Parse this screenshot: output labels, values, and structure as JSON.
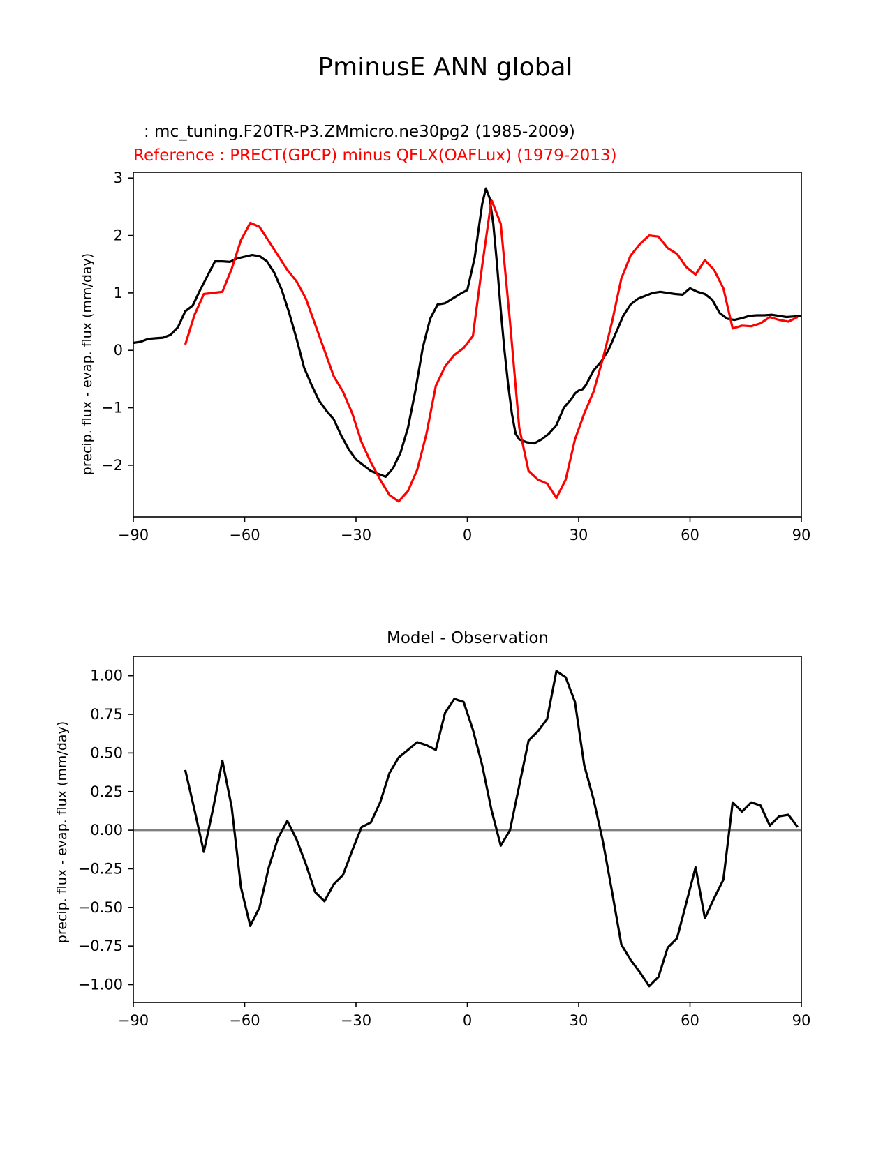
{
  "figure_title": "PminusE ANN global",
  "top": {
    "test_label": ": mc_tuning.F20TR-P3.ZMmicro.ne30pg2 (1985-2009)",
    "ref_label": "Reference : PRECT(GPCP) minus QFLX(OAFLux) (1979-2013)",
    "ylabel": "precip. flux - evap. flux (mm/day)"
  },
  "bottom": {
    "title": "Model - Observation",
    "ylabel": "precip. flux - evap. flux (mm/day)"
  },
  "colors": {
    "test": "#000000",
    "reference": "#ff0000",
    "zero_line": "#808080"
  },
  "chart_data": [
    {
      "type": "line",
      "title": "",
      "xlabel": "",
      "ylabel": "precip. flux - evap. flux (mm/day)",
      "xlim": [
        -90,
        90
      ],
      "ylim": [
        -2.9,
        3.1
      ],
      "xticks": [
        -90,
        -60,
        -30,
        0,
        30,
        60,
        90
      ],
      "xtick_labels": [
        "−90",
        "−60",
        "−30",
        "0",
        "30",
        "60",
        "90"
      ],
      "yticks": [
        -2,
        -1,
        0,
        1,
        2,
        3
      ],
      "ytick_labels": [
        "−2",
        "−1",
        "0",
        "1",
        "2",
        "3"
      ],
      "series": [
        {
          "name": "test",
          "color": "#000000",
          "x": [
            -90,
            -88,
            -86,
            -84,
            -82,
            -80,
            -78,
            -76,
            -74,
            -72,
            -70,
            -68,
            -66,
            -64,
            -62,
            -60,
            -58,
            -56,
            -54,
            -52,
            -50,
            -48,
            -46,
            -44,
            -42,
            -40,
            -38,
            -36,
            -34,
            -32,
            -30,
            -28,
            -26,
            -24,
            -22,
            -20,
            -18,
            -16,
            -14,
            -12,
            -10,
            -8,
            -6,
            -4,
            -2,
            0,
            2,
            3,
            4,
            5,
            6,
            7,
            8,
            9,
            10,
            11,
            12,
            13,
            14,
            16,
            18,
            20,
            22,
            24,
            26,
            28,
            29,
            30,
            31,
            32,
            34,
            36,
            38,
            40,
            42,
            44,
            46,
            48,
            50,
            52,
            54,
            56,
            58,
            60,
            62,
            64,
            66,
            68,
            70,
            72,
            74,
            76,
            78,
            80,
            82,
            84,
            86,
            88,
            90
          ],
          "values": [
            0.13,
            0.15,
            0.2,
            0.21,
            0.22,
            0.27,
            0.4,
            0.68,
            0.78,
            1.05,
            1.3,
            1.55,
            1.55,
            1.54,
            1.6,
            1.63,
            1.66,
            1.64,
            1.55,
            1.35,
            1.05,
            0.65,
            0.2,
            -0.3,
            -0.6,
            -0.87,
            -1.05,
            -1.2,
            -1.48,
            -1.72,
            -1.9,
            -2.0,
            -2.1,
            -2.15,
            -2.2,
            -2.05,
            -1.78,
            -1.35,
            -0.7,
            0.05,
            0.55,
            0.8,
            0.82,
            0.9,
            0.98,
            1.05,
            1.62,
            2.1,
            2.55,
            2.82,
            2.65,
            2.2,
            1.5,
            0.7,
            0.0,
            -0.6,
            -1.1,
            -1.45,
            -1.55,
            -1.6,
            -1.62,
            -1.55,
            -1.45,
            -1.3,
            -1.0,
            -0.85,
            -0.75,
            -0.7,
            -0.68,
            -0.6,
            -0.35,
            -0.2,
            0.0,
            0.3,
            0.6,
            0.8,
            0.9,
            0.95,
            1.0,
            1.02,
            1.0,
            0.98,
            0.97,
            1.08,
            1.02,
            0.98,
            0.88,
            0.65,
            0.55,
            0.53,
            0.56,
            0.6,
            0.61,
            0.61,
            0.62,
            0.6,
            0.58,
            0.59,
            0.6
          ]
        },
        {
          "name": "reference",
          "color": "#ff0000",
          "x": [
            -76,
            -73.5,
            -71,
            -68.5,
            -66,
            -63.5,
            -61,
            -58.5,
            -56,
            -53.5,
            -51,
            -48.5,
            -46,
            -43.5,
            -41,
            -38.5,
            -36,
            -33.5,
            -31,
            -28.5,
            -26,
            -23.5,
            -21,
            -18.5,
            -16,
            -13.5,
            -11,
            -8.5,
            -6,
            -3.5,
            -1,
            1.5,
            4,
            6.5,
            9,
            11.5,
            14,
            16.5,
            19,
            21.5,
            24,
            26.5,
            29,
            31.5,
            34,
            36.5,
            39,
            41.5,
            44,
            46.5,
            49,
            51.5,
            54,
            56.5,
            59,
            61.5,
            64,
            66.5,
            69,
            71.5,
            74,
            76.5,
            79,
            81.5,
            84,
            86.5,
            89
          ],
          "values": [
            0.1,
            0.62,
            0.98,
            1.0,
            1.02,
            1.42,
            1.92,
            2.22,
            2.15,
            1.9,
            1.65,
            1.4,
            1.2,
            0.9,
            0.45,
            0.0,
            -0.45,
            -0.72,
            -1.1,
            -1.6,
            -1.95,
            -2.25,
            -2.52,
            -2.63,
            -2.45,
            -2.08,
            -1.45,
            -0.62,
            -0.28,
            -0.08,
            0.04,
            0.25,
            1.48,
            2.62,
            2.2,
            0.5,
            -1.35,
            -2.1,
            -2.25,
            -2.32,
            -2.57,
            -2.25,
            -1.55,
            -1.1,
            -0.72,
            -0.15,
            0.5,
            1.25,
            1.65,
            1.85,
            2.0,
            1.98,
            1.78,
            1.68,
            1.45,
            1.32,
            1.57,
            1.4,
            1.08,
            0.38,
            0.43,
            0.42,
            0.47,
            0.58,
            0.53,
            0.5,
            0.58
          ]
        }
      ]
    },
    {
      "type": "line",
      "title": "Model - Observation",
      "xlabel": "",
      "ylabel": "precip. flux - evap. flux (mm/day)",
      "xlim": [
        -90,
        90
      ],
      "ylim": [
        -1.115,
        1.125
      ],
      "xticks": [
        -90,
        -60,
        -30,
        0,
        30,
        60,
        90
      ],
      "xtick_labels": [
        "−90",
        "−60",
        "−30",
        "0",
        "30",
        "60",
        "90"
      ],
      "yticks": [
        1.0,
        0.75,
        0.5,
        0.25,
        0.0,
        -0.25,
        -0.5,
        -0.75,
        -1.0
      ],
      "ytick_labels": [
        "1.00",
        "0.75",
        "0.50",
        "0.25",
        "0.00",
        "−0.25",
        "−0.50",
        "−0.75",
        "−1.00"
      ],
      "zero_line": 0,
      "series": [
        {
          "name": "difference",
          "color": "#000000",
          "x": [
            -76,
            -73.5,
            -71,
            -68.5,
            -66,
            -63.5,
            -61,
            -58.5,
            -56,
            -53.5,
            -51,
            -48.5,
            -46,
            -43.5,
            -41,
            -38.5,
            -36,
            -33.5,
            -31,
            -28.5,
            -26,
            -23.5,
            -21,
            -18.5,
            -16,
            -13.5,
            -11,
            -8.5,
            -6,
            -3.5,
            -1,
            1.5,
            4,
            6.5,
            9,
            11.5,
            14,
            16.5,
            19,
            21.5,
            24,
            26.5,
            29,
            31.5,
            34,
            36.5,
            39,
            41.5,
            44,
            46.5,
            49,
            51.5,
            54,
            56.5,
            59,
            61.5,
            64,
            66.5,
            69,
            71.5,
            74,
            76.5,
            79,
            81.5,
            84,
            86.5,
            89
          ],
          "values": [
            0.39,
            0.13,
            -0.14,
            0.14,
            0.45,
            0.15,
            -0.37,
            -0.62,
            -0.5,
            -0.24,
            -0.05,
            0.06,
            -0.06,
            -0.22,
            -0.4,
            -0.46,
            -0.35,
            -0.29,
            -0.13,
            0.02,
            0.05,
            0.18,
            0.37,
            0.47,
            0.52,
            0.57,
            0.55,
            0.52,
            0.76,
            0.85,
            0.83,
            0.65,
            0.42,
            0.13,
            -0.1,
            0.0,
            0.29,
            0.58,
            0.64,
            0.72,
            1.03,
            0.99,
            0.83,
            0.42,
            0.2,
            -0.07,
            -0.4,
            -0.74,
            -0.84,
            -0.92,
            -1.01,
            -0.95,
            -0.76,
            -0.7,
            -0.47,
            -0.24,
            -0.57,
            -0.44,
            -0.32,
            0.18,
            0.12,
            0.18,
            0.16,
            0.03,
            0.09,
            0.1,
            0.02
          ]
        }
      ]
    }
  ]
}
